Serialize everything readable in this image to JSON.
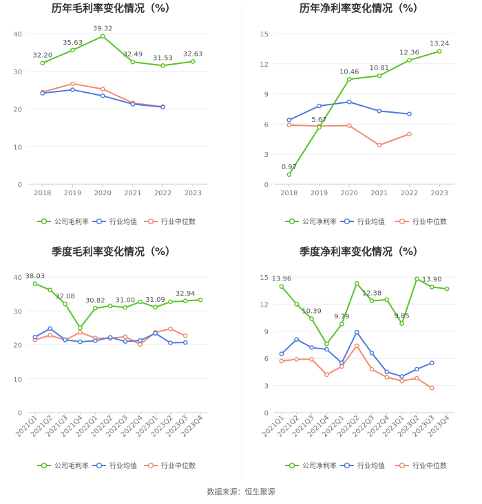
{
  "source": "数据来源：恒生聚源",
  "colors": {
    "company": "#58C322",
    "avg": "#4F7BE0",
    "median": "#F28A6E"
  },
  "legend": {
    "company_gross": "公司毛利率",
    "company_net": "公司净利率",
    "avg": "行业均值",
    "median": "行业中位数"
  },
  "chart_data": [
    {
      "type": "line",
      "title": "历年毛利率变化情况（%）",
      "categories": [
        "2018",
        "2019",
        "2020",
        "2021",
        "2022",
        "2023"
      ],
      "ylim": [
        0,
        40
      ],
      "yticks": [
        0,
        10,
        20,
        30,
        40
      ],
      "grid": true,
      "legend_position": "bottom",
      "series": [
        {
          "name": "公司毛利率",
          "color": "#58C322",
          "values": [
            32.2,
            35.63,
            39.32,
            32.49,
            31.53,
            32.63
          ],
          "labels": [
            "32.20",
            "35.63",
            "39.32",
            "32.49",
            "31.53",
            "32.63"
          ]
        },
        {
          "name": "行业均值",
          "color": "#4F7BE0",
          "values": [
            24.2,
            25.1,
            23.5,
            21.3,
            20.5,
            null
          ]
        },
        {
          "name": "行业中位数",
          "color": "#F28A6E",
          "values": [
            24.5,
            26.7,
            25.3,
            21.6,
            20.6,
            null
          ]
        }
      ]
    },
    {
      "type": "line",
      "title": "历年净利率变化情况（%）",
      "categories": [
        "2018",
        "2019",
        "2020",
        "2021",
        "2022",
        "2023"
      ],
      "ylim": [
        0,
        15
      ],
      "yticks": [
        0,
        3,
        6,
        9,
        12,
        15
      ],
      "grid": true,
      "legend_position": "bottom",
      "series": [
        {
          "name": "公司净利率",
          "color": "#58C322",
          "values": [
            0.97,
            5.67,
            10.46,
            10.81,
            12.36,
            13.24
          ],
          "labels": [
            "0.97",
            "5.67",
            "10.46",
            "10.81",
            "12.36",
            "13.24"
          ]
        },
        {
          "name": "行业均值",
          "color": "#4F7BE0",
          "values": [
            6.4,
            7.8,
            8.2,
            7.3,
            7.0,
            null
          ]
        },
        {
          "name": "行业中位数",
          "color": "#F28A6E",
          "values": [
            5.9,
            5.8,
            5.85,
            3.9,
            5.0,
            null
          ]
        }
      ]
    },
    {
      "type": "line",
      "title": "季度毛利率变化情况（%）",
      "categories": [
        "2021Q1",
        "2021Q2",
        "2021Q3",
        "2021Q4",
        "2022Q1",
        "2022Q2",
        "2022Q3",
        "2022Q4",
        "2023Q1",
        "2023Q2",
        "2023Q3",
        "2023Q4"
      ],
      "ylim": [
        0,
        40
      ],
      "yticks": [
        0,
        10,
        20,
        30,
        40
      ],
      "grid": true,
      "legend_position": "bottom",
      "series": [
        {
          "name": "公司毛利率",
          "color": "#58C322",
          "values": [
            38.03,
            36.2,
            32.08,
            25.0,
            30.82,
            31.5,
            31.0,
            32.7,
            31.09,
            32.7,
            32.94,
            33.3
          ],
          "labels": [
            "38.03",
            "",
            "32.08",
            "",
            "30.82",
            "",
            "31.00",
            "",
            "31.09",
            "",
            "32.94",
            ""
          ]
        },
        {
          "name": "行业均值",
          "color": "#4F7BE0",
          "values": [
            22.3,
            24.8,
            21.5,
            20.9,
            21.2,
            22.2,
            21.0,
            21.3,
            23.4,
            20.6,
            20.7,
            null
          ]
        },
        {
          "name": "行业中位数",
          "color": "#F28A6E",
          "values": [
            21.5,
            22.8,
            21.4,
            23.7,
            22.0,
            21.9,
            22.4,
            20.1,
            23.7,
            24.7,
            22.7,
            null
          ]
        }
      ]
    },
    {
      "type": "line",
      "title": "季度净利率变化情况（%）",
      "categories": [
        "2021Q1",
        "2021Q2",
        "2021Q3",
        "2021Q4",
        "2022Q1",
        "2022Q2",
        "2022Q3",
        "2022Q4",
        "2023Q1",
        "2023Q2",
        "2023Q3",
        "2023Q4"
      ],
      "ylim": [
        0,
        15
      ],
      "yticks": [
        0,
        3,
        6,
        9,
        12,
        15
      ],
      "grid": true,
      "legend_position": "bottom",
      "series": [
        {
          "name": "公司净利率",
          "color": "#58C322",
          "values": [
            13.96,
            12.0,
            10.39,
            7.6,
            9.79,
            14.3,
            12.38,
            12.5,
            9.85,
            14.8,
            13.9,
            13.7
          ],
          "labels": [
            "13.96",
            "",
            "10.39",
            "",
            "9.79",
            "",
            "12.38",
            "",
            "9.85",
            "",
            "13.90",
            ""
          ]
        },
        {
          "name": "行业均值",
          "color": "#4F7BE0",
          "values": [
            6.5,
            8.1,
            7.2,
            7.0,
            5.5,
            8.9,
            6.6,
            4.5,
            4.0,
            4.8,
            5.5,
            null
          ]
        },
        {
          "name": "行业中位数",
          "color": "#F28A6E",
          "values": [
            5.7,
            5.9,
            5.9,
            4.2,
            5.1,
            7.4,
            4.8,
            3.9,
            3.5,
            3.8,
            2.7,
            null
          ]
        }
      ]
    }
  ]
}
